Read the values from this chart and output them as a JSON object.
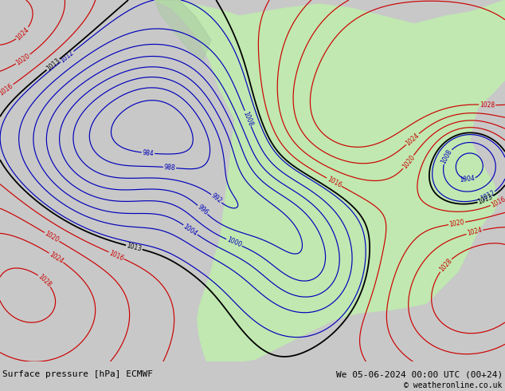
{
  "title_left": "Surface pressure [hPa] ECMWF",
  "title_right": "We 05-06-2024 00:00 UTC (00+24)",
  "copyright": "© weatheronline.co.uk",
  "ocean_color": "#e2e0dc",
  "land_color": "#c0e8b0",
  "mountain_color": "#b0b0a0",
  "isobar_blue": "#0000bb",
  "isobar_red": "#cc0000",
  "isobar_black": "#000000",
  "footer_bg": "#c8c8c8",
  "footer_fontsize": 8,
  "figsize": [
    6.34,
    4.9
  ],
  "dpi": 100,
  "blue_levels": [
    984,
    988,
    992,
    996,
    1000,
    1004,
    1008,
    1012
  ],
  "red_levels": [
    1016,
    1020,
    1024,
    1028
  ],
  "black_levels": [
    1013
  ]
}
